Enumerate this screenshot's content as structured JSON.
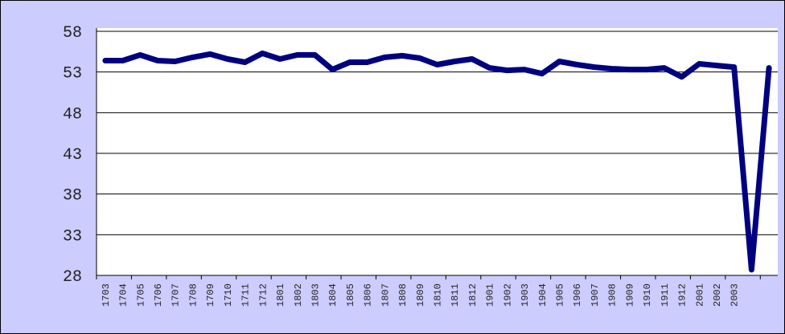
{
  "chart_data": {
    "type": "line",
    "title": "",
    "xlabel": "",
    "ylabel": "",
    "categories": [
      "1703",
      "1704",
      "1705",
      "1706",
      "1707",
      "1708",
      "1709",
      "1710",
      "1711",
      "1712",
      "1801",
      "1802",
      "1803",
      "1804",
      "1805",
      "1806",
      "1807",
      "1808",
      "1809",
      "1810",
      "1811",
      "1812",
      "1901",
      "1902",
      "1903",
      "1904",
      "1905",
      "1906",
      "1907",
      "1908",
      "1909",
      "1910",
      "1911",
      "1912",
      "2001",
      "2002",
      "2003",
      "",
      ""
    ],
    "values": [
      54.4,
      54.4,
      55.1,
      54.4,
      54.3,
      54.8,
      55.2,
      54.6,
      54.2,
      55.3,
      54.6,
      55.1,
      55.1,
      53.3,
      54.2,
      54.2,
      54.8,
      55.0,
      54.7,
      53.9,
      54.3,
      54.6,
      53.5,
      53.2,
      53.3,
      52.8,
      54.3,
      53.9,
      53.6,
      53.4,
      53.3,
      53.3,
      53.5,
      52.4,
      54.0,
      53.8,
      53.6,
      28.7,
      53.5
    ],
    "y_ticks": [
      28,
      33,
      38,
      43,
      48,
      53,
      58
    ],
    "ylim": [
      28,
      58
    ],
    "grid": true,
    "legend": "none",
    "x_tick_interval": 2,
    "colors": {
      "series_line": "#000080",
      "chart_background": "#CCCCFF",
      "plot_background": "#FFFFFF",
      "axis_line": "#000000",
      "gridline": "#000000",
      "tick_text": "#222222",
      "outer_border": "#000000"
    }
  }
}
